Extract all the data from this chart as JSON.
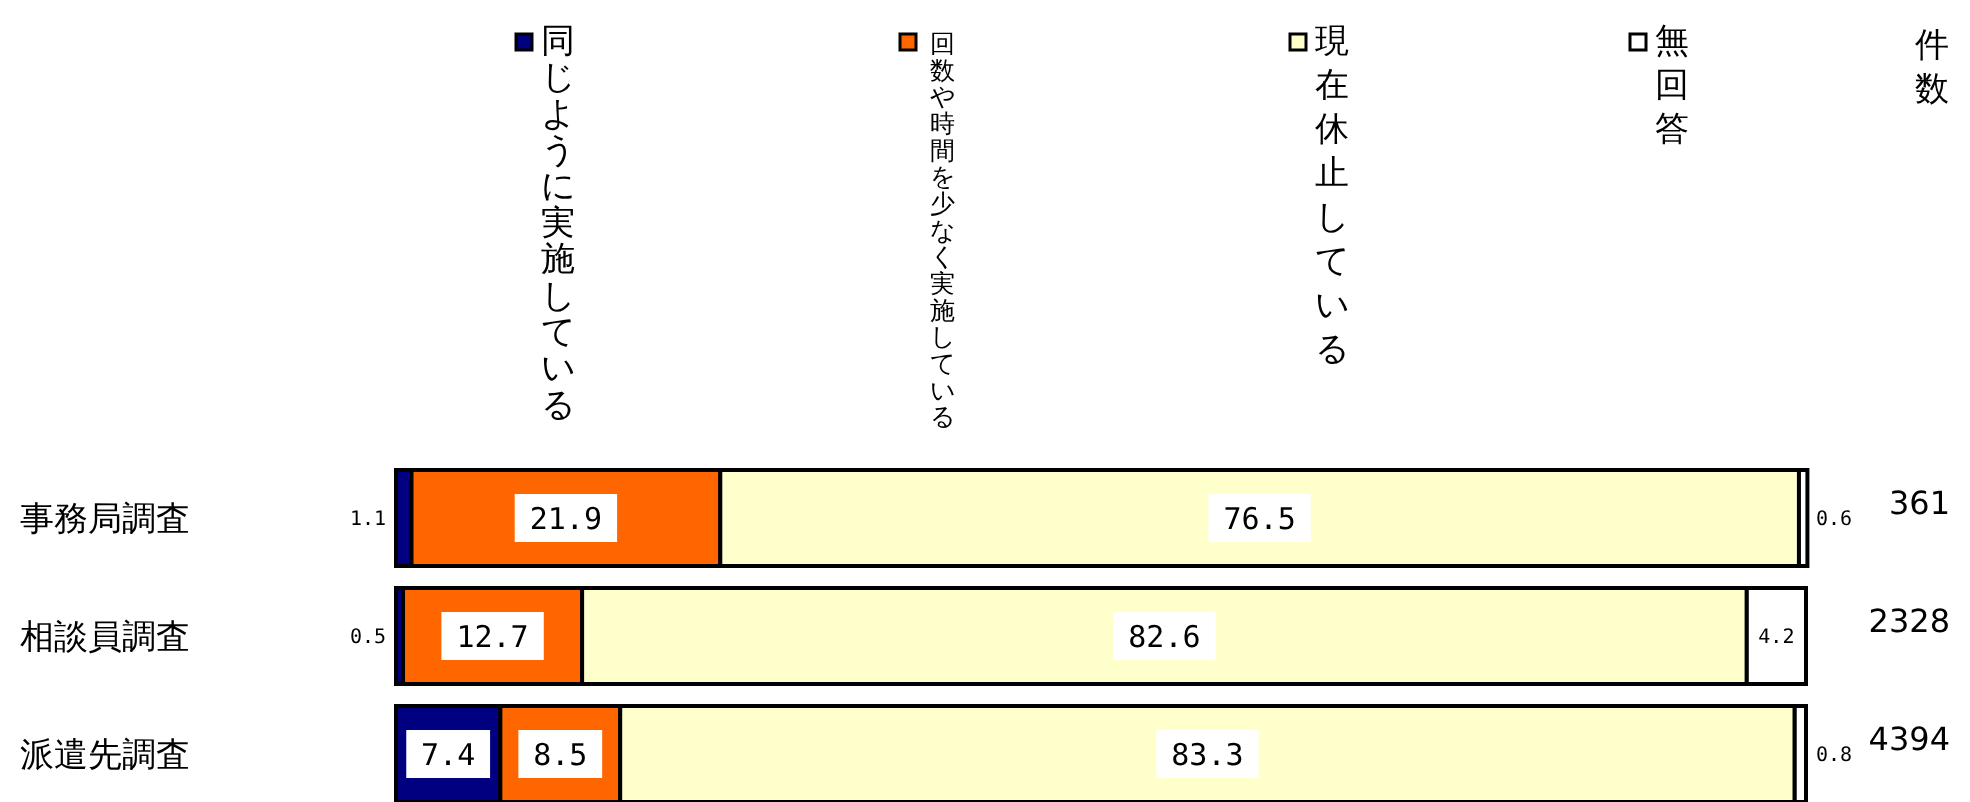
{
  "chart_data": {
    "type": "bar",
    "orientation": "horizontal",
    "stacked": true,
    "data_labels": true,
    "legend": "top",
    "xlim": [
      0,
      100
    ],
    "tick_labels": "y",
    "categories": [
      "事務局調査",
      "相談員調査",
      "派遣先調査"
    ],
    "series": [
      {
        "name": "同じように実施している",
        "color": "#000080",
        "values": [
          1.1,
          0.5,
          7.4
        ]
      },
      {
        "name": "回数や時間を少なく実施している",
        "color": "#ff6600",
        "values": [
          21.9,
          12.7,
          8.5
        ]
      },
      {
        "name": "現在休止している",
        "color": "#ffffcc",
        "values": [
          76.5,
          82.6,
          83.3
        ]
      },
      {
        "name": "無回答",
        "color": "#ffffff",
        "values": [
          0.6,
          4.2,
          0.8
        ]
      }
    ],
    "annotations": [
      "件数",
      "361",
      "2328",
      "4394"
    ]
  }
}
